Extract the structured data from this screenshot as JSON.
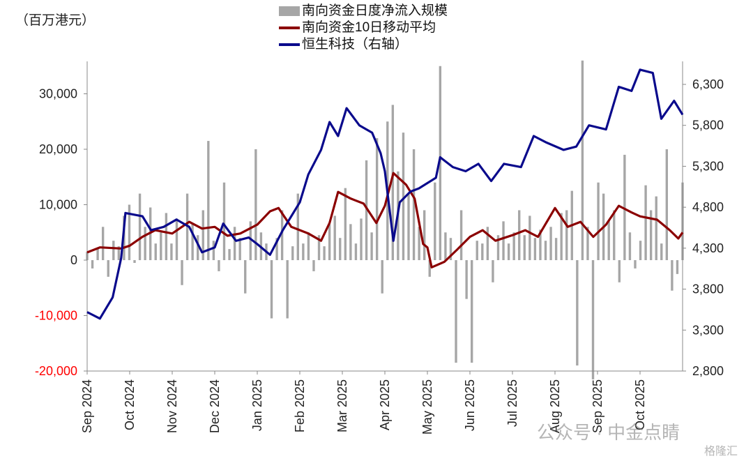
{
  "chart_data": {
    "type": "bar+line",
    "unit_label": "（百万港元）",
    "x_ticks": [
      "Sep 2024",
      "Oct 2024",
      "Nov 2024",
      "Dec 2024",
      "Jan 2025",
      "Feb 2025",
      "Mar 2025",
      "Apr 2025",
      "May 2025",
      "Jun 2025",
      "Jul 2025",
      "Aug 2025",
      "Sep 2025",
      "Oct 2025"
    ],
    "x_unit": "months since Sep 2024",
    "x_range": [
      0,
      14
    ],
    "left_axis": {
      "ylim": [
        -20000,
        35000
      ],
      "ticks": [
        -20000,
        -10000,
        0,
        10000,
        20000,
        30000
      ],
      "tick_labels": [
        "-20,000",
        "-10,000",
        "0",
        "10,000",
        "20,000",
        "30,000"
      ],
      "negative_color": "#ff0000"
    },
    "right_axis": {
      "ylim": [
        2800,
        6600
      ],
      "ticks": [
        2800,
        3300,
        3800,
        4300,
        4800,
        5300,
        5800,
        6300
      ],
      "tick_labels": [
        "2,800",
        "3,300",
        "3,800",
        "4,300",
        "4,800",
        "5,300",
        "5,800",
        "6,300"
      ]
    },
    "legend": [
      "南向资金日度净流入规模",
      "南向资金10日移动平均",
      "恒生科技（右轴）"
    ],
    "colors": {
      "bars": "#a6a6a6",
      "ma": "#8b0000",
      "hstech": "#0a0a8c"
    },
    "series": [
      {
        "name": "南向资金日度净流入规模",
        "type": "bar",
        "axis": "left",
        "values": [
          1500,
          -1500,
          2000,
          6000,
          -3000,
          3500,
          2500,
          8000,
          10000,
          -500,
          12000,
          6000,
          9500,
          3000,
          5000,
          8500,
          3000,
          7500,
          -4500,
          12000,
          6500,
          4500,
          9000,
          21500,
          3500,
          -2000,
          14000,
          2000,
          6000,
          4000,
          -6000,
          7000,
          20000,
          5000,
          3000,
          -10500,
          4000,
          9000,
          -10500,
          2500,
          12000,
          3000,
          5000,
          -2000,
          4500,
          2500,
          6500,
          8000,
          4000,
          13000,
          6500,
          3000,
          7500,
          18000,
          5000,
          22000,
          -6000,
          25000,
          28000,
          16000,
          23000,
          12000,
          20000,
          6000,
          9000,
          -3000,
          14000,
          35000,
          5000,
          4000,
          -18500,
          9000,
          -7000,
          -18500,
          3500,
          3000,
          6000,
          -4000,
          4500,
          7000,
          3000,
          5000,
          9000,
          4500,
          8000,
          4000,
          5500,
          3500,
          6000,
          4000,
          8500,
          9000,
          12500,
          -19000,
          36000,
          6000,
          -21500,
          14000,
          12000,
          7000,
          9000,
          -4000,
          19000,
          5000,
          -1500,
          3500,
          13500,
          9000,
          11500,
          3000,
          20000,
          -5500,
          -2500,
          14000
        ]
      },
      {
        "name": "南向资金10日移动平均",
        "type": "line",
        "axis": "left",
        "x": [
          0,
          0.3,
          0.8,
          1.0,
          1.3,
          1.6,
          2.0,
          2.4,
          2.7,
          3.0,
          3.3,
          3.6,
          4.0,
          4.3,
          4.5,
          4.8,
          5.2,
          5.5,
          5.7,
          5.9,
          6.2,
          6.5,
          6.8,
          7.0,
          7.2,
          7.5,
          7.7,
          7.9,
          8.0,
          8.1,
          8.4,
          8.7,
          9.0,
          9.3,
          9.6,
          10.0,
          10.3,
          10.6,
          11.0,
          11.3,
          11.6,
          11.9,
          12.2,
          12.5,
          12.8,
          13.0,
          13.4,
          13.7,
          13.9,
          14.0
        ],
        "y": [
          1400,
          2300,
          2100,
          2600,
          4200,
          5400,
          4800,
          6900,
          5700,
          6000,
          4400,
          4800,
          6400,
          8800,
          9400,
          6000,
          4800,
          3500,
          6700,
          12300,
          11100,
          10200,
          6700,
          9800,
          15700,
          13600,
          11100,
          2900,
          2300,
          -1300,
          -300,
          1900,
          4200,
          5400,
          3500,
          4500,
          5400,
          4200,
          9400,
          6000,
          6900,
          4200,
          6400,
          9800,
          8600,
          7900,
          7300,
          5400,
          3900,
          5000
        ]
      },
      {
        "name": "恒生科技（右轴）",
        "type": "line",
        "axis": "right",
        "x": [
          0,
          0.3,
          0.6,
          0.8,
          0.9,
          1.3,
          1.5,
          1.8,
          2.1,
          2.4,
          2.7,
          3.0,
          3.2,
          3.5,
          3.8,
          4.0,
          4.3,
          4.6,
          5.0,
          5.2,
          5.5,
          5.7,
          5.9,
          6.1,
          6.4,
          6.7,
          6.9,
          7.0,
          7.2,
          7.35,
          7.6,
          7.8,
          8.2,
          8.3,
          8.6,
          8.9,
          9.2,
          9.5,
          9.8,
          10.2,
          10.5,
          10.8,
          11.2,
          11.5,
          11.8,
          12.2,
          12.5,
          12.8,
          13.0,
          13.3,
          13.5,
          13.8,
          14.0
        ],
        "y": [
          3520,
          3440,
          3700,
          4180,
          4730,
          4690,
          4520,
          4560,
          4650,
          4560,
          4250,
          4310,
          4600,
          4390,
          4430,
          4350,
          4220,
          4520,
          4860,
          5200,
          5500,
          5840,
          5670,
          6010,
          5800,
          5710,
          5460,
          5240,
          4390,
          4860,
          4990,
          5030,
          5160,
          5410,
          5290,
          5240,
          5330,
          5120,
          5330,
          5290,
          5670,
          5590,
          5500,
          5540,
          5800,
          5750,
          6270,
          6220,
          6480,
          6440,
          5880,
          6100,
          5930
        ]
      }
    ]
  },
  "watermark": {
    "text": "公众号 · 中金点睛",
    "source": "格隆汇"
  }
}
